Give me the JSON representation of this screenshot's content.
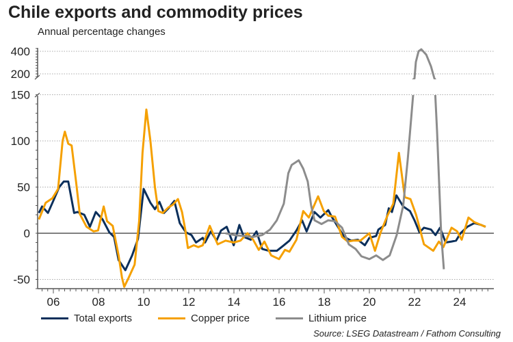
{
  "chart_data": {
    "type": "line",
    "title": "Chile exports and commodity prices",
    "subtitle": "Annual percentage changes",
    "source": "Source: LSEG Datastream / Fathom Consulting",
    "xlabel": "",
    "ylabel": "",
    "xlim": [
      2005.3,
      2025.45
    ],
    "ylim_lower": [
      -60,
      150
    ],
    "ylim_upper": [
      150,
      440
    ],
    "axis_break": true,
    "x_ticks": [
      {
        "v": 2006,
        "label": "06"
      },
      {
        "v": 2008,
        "label": "08"
      },
      {
        "v": 2010,
        "label": "10"
      },
      {
        "v": 2012,
        "label": "12"
      },
      {
        "v": 2014,
        "label": "14"
      },
      {
        "v": 2016,
        "label": "16"
      },
      {
        "v": 2018,
        "label": "18"
      },
      {
        "v": 2020,
        "label": "20"
      },
      {
        "v": 2022,
        "label": "22"
      },
      {
        "v": 2024,
        "label": "24"
      }
    ],
    "y_ticks_lower": [
      {
        "v": -50,
        "label": "-50"
      },
      {
        "v": 0,
        "label": "0"
      },
      {
        "v": 50,
        "label": "50"
      },
      {
        "v": 100,
        "label": "100"
      },
      {
        "v": 150,
        "label": "150"
      }
    ],
    "y_ticks_upper": [
      {
        "v": 200,
        "label": "200"
      },
      {
        "v": 400,
        "label": "400"
      }
    ],
    "legend_position": "bottom",
    "series": [
      {
        "name": "Total exports",
        "color": "#0b2f5b",
        "x": [
          2005.36,
          2005.5,
          2005.76,
          2005.96,
          2006.26,
          2006.46,
          2006.66,
          2006.92,
          2007.07,
          2007.37,
          2007.62,
          2007.88,
          2008.18,
          2008.48,
          2008.69,
          2008.89,
          2009.19,
          2009.49,
          2009.75,
          2010.0,
          2010.3,
          2010.5,
          2010.7,
          2010.9,
          2011.1,
          2011.36,
          2011.6,
          2011.87,
          2012.12,
          2012.32,
          2012.62,
          2012.72,
          2012.98,
          2013.23,
          2013.43,
          2013.68,
          2013.99,
          2014.24,
          2014.44,
          2014.75,
          2015.0,
          2015.25,
          2015.55,
          2015.9,
          2016.16,
          2016.46,
          2016.77,
          2017.02,
          2017.22,
          2017.57,
          2017.83,
          2018.18,
          2018.33,
          2018.58,
          2018.89,
          2019.19,
          2019.49,
          2019.8,
          2020.0,
          2020.3,
          2020.4,
          2020.7,
          2020.86,
          2021.0,
          2021.2,
          2021.5,
          2021.8,
          2022.0,
          2022.22,
          2022.42,
          2022.73,
          2022.93,
          2023.13,
          2023.38,
          2023.64,
          2023.84,
          2024.04,
          2024.34,
          2024.65,
          2024.95,
          2025.15
        ],
        "y": [
          22,
          29,
          22,
          33,
          50,
          56,
          56,
          22,
          23,
          20,
          7,
          23,
          15,
          1,
          -4,
          -29,
          -40,
          -24,
          -6,
          48,
          33,
          26,
          34,
          22,
          27,
          35,
          11,
          1,
          -2,
          -10,
          -5,
          -10,
          2,
          -8,
          3,
          7,
          -13,
          9,
          -4,
          -7,
          2,
          -17,
          -19,
          -19,
          -14,
          -8,
          3,
          14,
          2,
          23,
          17,
          25,
          18,
          8,
          -4,
          -8,
          -7,
          -13,
          -5,
          -3,
          4,
          9,
          27,
          23,
          41,
          29,
          24,
          14,
          1,
          6,
          4,
          -2,
          6,
          -10,
          -9,
          -8,
          0,
          7,
          11,
          9,
          7
        ]
      },
      {
        "name": "Copper price",
        "color": "#f5a000",
        "x": [
          2005.36,
          2005.66,
          2005.96,
          2006.21,
          2006.41,
          2006.51,
          2006.66,
          2006.81,
          2007.01,
          2007.17,
          2007.47,
          2007.78,
          2007.98,
          2008.23,
          2008.38,
          2008.63,
          2008.89,
          2009.04,
          2009.14,
          2009.34,
          2009.6,
          2009.8,
          2009.95,
          2010.12,
          2010.3,
          2010.5,
          2010.65,
          2010.85,
          2011.1,
          2011.3,
          2011.52,
          2011.7,
          2011.85,
          2011.96,
          2012.22,
          2012.42,
          2012.62,
          2012.93,
          2013.28,
          2013.63,
          2013.99,
          2014.29,
          2014.6,
          2014.85,
          2015.1,
          2015.35,
          2015.65,
          2016.0,
          2016.26,
          2016.46,
          2016.77,
          2017.07,
          2017.32,
          2017.73,
          2017.98,
          2018.18,
          2018.48,
          2018.79,
          2019.04,
          2019.29,
          2019.6,
          2020.0,
          2020.25,
          2020.5,
          2020.8,
          2021.06,
          2021.31,
          2021.57,
          2021.82,
          2022.07,
          2022.42,
          2022.83,
          2023.08,
          2023.28,
          2023.64,
          2023.89,
          2024.09,
          2024.39,
          2024.65,
          2024.95,
          2025.15
        ],
        "y": [
          15,
          33,
          38,
          48,
          100,
          110,
          97,
          95,
          55,
          21,
          7,
          2,
          3,
          29,
          13,
          8,
          -24,
          -48,
          -58,
          -48,
          -34,
          13,
          87,
          134,
          100,
          50,
          24,
          22,
          28,
          31,
          37,
          23,
          3,
          -16,
          -13,
          -15,
          -13,
          8,
          -12,
          -8,
          -10,
          -8,
          0,
          -7,
          -18,
          -9,
          -24,
          -28,
          -18,
          -20,
          -7,
          24,
          17,
          40,
          24,
          19,
          18,
          -4,
          -9,
          -8,
          -8,
          0,
          -19,
          1,
          19,
          32,
          87,
          39,
          37,
          20,
          -12,
          -19,
          -9,
          -15,
          6,
          2,
          -7,
          17,
          12,
          9,
          7
        ]
      },
      {
        "name": "Lithium price",
        "color": "#8c8c8c",
        "x": [
          2013.63,
          2014.03,
          2014.43,
          2014.83,
          2015.25,
          2015.6,
          2015.9,
          2016.21,
          2016.41,
          2016.56,
          2016.87,
          2017.07,
          2017.27,
          2017.42,
          2017.57,
          2017.88,
          2018.18,
          2018.48,
          2018.79,
          2019.09,
          2019.39,
          2019.65,
          2020.0,
          2020.3,
          2020.6,
          2020.9,
          2021.21,
          2021.5,
          2021.7,
          2021.94,
          2022.0,
          2022.06,
          2022.18,
          2022.3,
          2022.52,
          2022.73,
          2022.88,
          2022.92,
          2023.0,
          2023.18,
          2023.3
        ],
        "y": [
          0,
          -2,
          -3,
          -4,
          -2,
          4,
          14,
          32,
          65,
          74,
          79,
          70,
          56,
          30,
          14,
          10,
          14,
          13,
          6,
          -12,
          -17,
          -25,
          -28,
          -24,
          -29,
          -24,
          -2,
          30,
          80,
          150,
          160,
          305,
          400,
          418,
          370,
          267,
          160,
          150,
          110,
          0,
          -39
        ]
      }
    ]
  }
}
